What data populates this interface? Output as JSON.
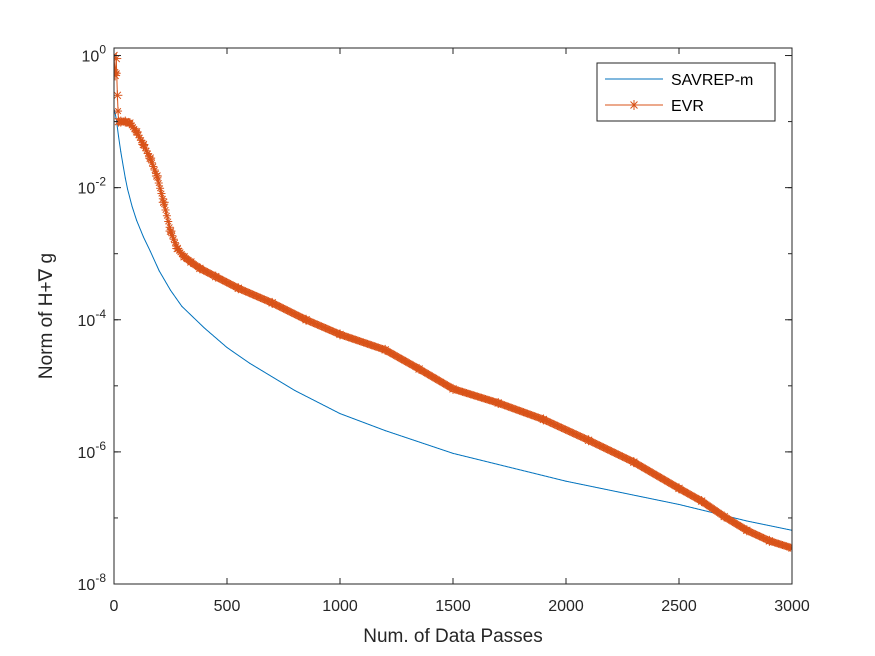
{
  "chart_data": {
    "type": "line",
    "xlabel": "Num. of Data Passes",
    "ylabel": "Norm of H+∇ g",
    "xlim": [
      0,
      3000
    ],
    "ylim": [
      1e-08,
      1.3
    ],
    "yscale": "log",
    "x_ticks": [
      0,
      500,
      1000,
      1500,
      2000,
      2500,
      3000
    ],
    "x_tick_labels": [
      "0",
      "500",
      "1000",
      "1500",
      "2000",
      "2500",
      "3000"
    ],
    "y_ticks": [
      {
        "value": 1,
        "base": "10",
        "exp": "0"
      },
      {
        "value": 0.01,
        "base": "10",
        "exp": "-2"
      },
      {
        "value": 0.0001,
        "base": "10",
        "exp": "-4"
      },
      {
        "value": 1e-06,
        "base": "10",
        "exp": "-6"
      },
      {
        "value": 1e-08,
        "base": "10",
        "exp": "-8"
      }
    ],
    "legend_position": "top-right",
    "series": [
      {
        "name": "SAVREP-m",
        "color": "#0072BD",
        "marker": "none",
        "x": [
          2,
          10,
          20,
          30,
          40,
          50,
          60,
          80,
          100,
          130,
          160,
          200,
          250,
          300,
          400,
          500,
          600,
          800,
          1000,
          1200,
          1500,
          2000,
          2500,
          2800,
          3000
        ],
        "y": [
          0.15,
          0.11,
          0.06,
          0.035,
          0.022,
          0.014,
          0.0095,
          0.0052,
          0.0032,
          0.0018,
          0.0011,
          0.00055,
          0.00028,
          0.00016,
          7.5e-05,
          3.8e-05,
          2.2e-05,
          8.5e-06,
          3.8e-06,
          2.1e-06,
          9.5e-07,
          3.6e-07,
          1.6e-07,
          9e-08,
          6.5e-08
        ]
      },
      {
        "name": "EVR",
        "color": "#D95319",
        "marker": "*",
        "x": [
          0,
          5,
          10,
          15,
          20,
          30,
          50,
          70,
          100,
          130,
          160,
          190,
          220,
          250,
          280,
          310,
          340,
          380,
          450,
          550,
          700,
          850,
          1000,
          1200,
          1350,
          1500,
          1700,
          1900,
          2100,
          2300,
          2500,
          2600,
          2700,
          2800,
          2900,
          3000
        ],
        "y": [
          1.0,
          0.5,
          0.9,
          0.25,
          0.1,
          0.1,
          0.1,
          0.095,
          0.07,
          0.045,
          0.028,
          0.015,
          0.006,
          0.0022,
          0.0012,
          0.0009,
          0.00075,
          0.0006,
          0.00045,
          0.0003,
          0.00018,
          0.0001,
          6e-05,
          3.5e-05,
          1.8e-05,
          9e-06,
          5.5e-06,
          3.1e-06,
          1.5e-06,
          7e-07,
          2.8e-07,
          1.8e-07,
          1.05e-07,
          6.5e-08,
          4.5e-08,
          3.5e-08
        ]
      }
    ]
  }
}
